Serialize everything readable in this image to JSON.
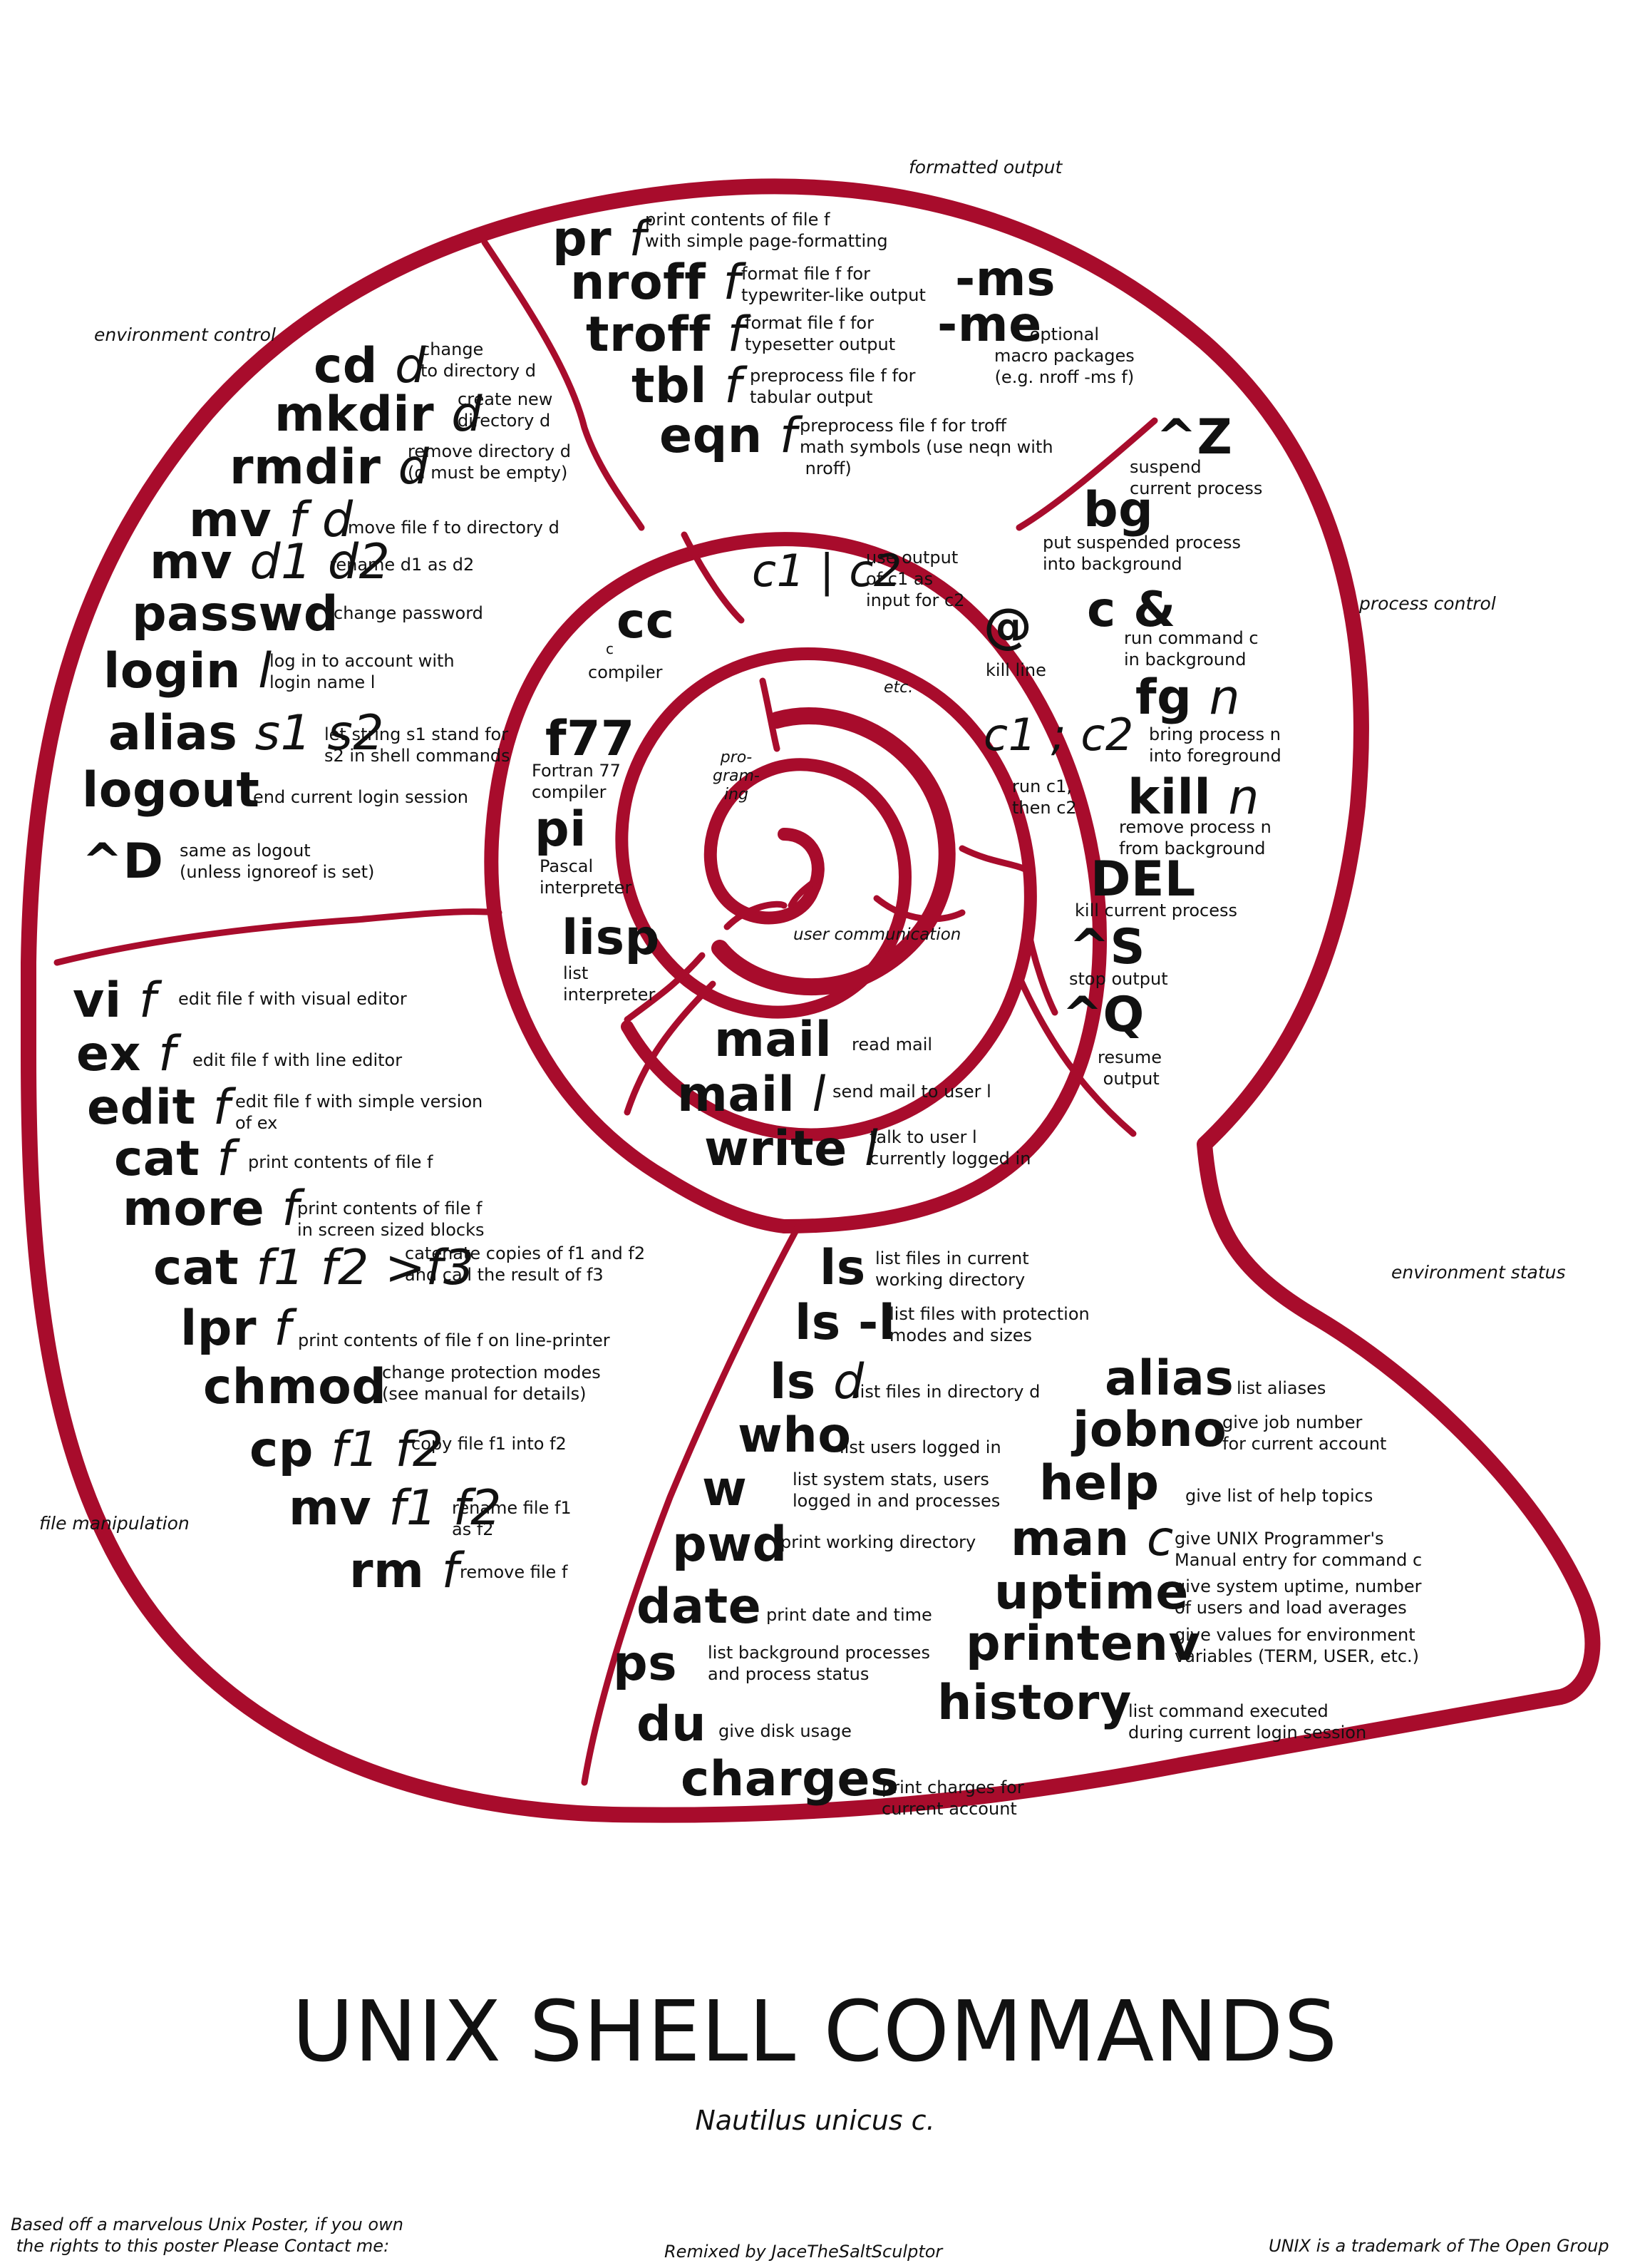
{
  "colors": {
    "shell": "#a80c2c",
    "text": "#111111",
    "background": "#ffffff"
  },
  "title": "UNIX SHELL COMMANDS",
  "subtitle": "Nautilus unicus c.",
  "footer": {
    "left": "Based off a marvelous Unix Poster, if you own\n the rights to this poster Please Contact me:",
    "center": "Remixed by JaceTheSaltSculptor",
    "right": "UNIX is a trademark of The Open Group"
  },
  "sections": {
    "formatted_output": "formatted output",
    "environment_control": "environment control",
    "process_control": "process control",
    "environment_status": "environment status",
    "file_manipulation": "file manipulation",
    "programming": "pro-\ngram-\ning",
    "etc": "etc.",
    "user_communication": "user communication"
  },
  "formatted_output": {
    "pr": {
      "cmd": "pr",
      "arg": "f",
      "desc": "print contents of file f\nwith simple page-formatting"
    },
    "nroff": {
      "cmd": "nroff",
      "arg": "f",
      "desc": "format file f for\ntypewriter-like output"
    },
    "troff": {
      "cmd": "troff",
      "arg": "f",
      "desc": "format file f for\ntypesetter output"
    },
    "tbl": {
      "cmd": "tbl",
      "arg": "f",
      "desc": "preprocess file f for\ntabular output"
    },
    "eqn": {
      "cmd": "eqn",
      "arg": "f",
      "desc": "preprocess file f for troff\nmath symbols (use neqn with\n nroff)"
    },
    "ms": {
      "cmd": "-ms"
    },
    "me": {
      "cmd": "-me"
    },
    "macros_desc": "optional\nmacro packages\n(e.g. nroff -ms f)"
  },
  "environment_control": {
    "cd": {
      "cmd": "cd",
      "arg": "d",
      "desc": "change\nto directory d"
    },
    "mkdir": {
      "cmd": "mkdir",
      "arg": "d",
      "desc": "create new\ndirectory d"
    },
    "rmdir": {
      "cmd": "rmdir",
      "arg": "d",
      "desc": "remove directory d\n(d must be empty)"
    },
    "mv_fd": {
      "cmd": "mv",
      "arg": "f d",
      "desc": "move file f to directory d"
    },
    "mv_dd": {
      "cmd": "mv",
      "arg": "d1 d2",
      "desc": "rename d1 as d2"
    },
    "passwd": {
      "cmd": "passwd",
      "desc": "change password"
    },
    "login": {
      "cmd": "login",
      "arg": "l",
      "desc": "log in to account with\nlogin name l"
    },
    "alias": {
      "cmd": "alias",
      "arg": "s1 s2",
      "desc": "let string s1 stand for\ns2 in shell commands"
    },
    "logout": {
      "cmd": "logout",
      "desc": "end current login session"
    },
    "ctrl_d": {
      "cmd": "^D",
      "desc": "same as logout\n(unless ignoreof is set)"
    }
  },
  "process_control": {
    "ctrl_z": {
      "cmd": "^Z",
      "desc": "suspend\ncurrent process"
    },
    "bg": {
      "cmd": "bg",
      "desc": "put suspended process\ninto background"
    },
    "amp": {
      "cmd": "c &",
      "desc": "run command c\nin background"
    },
    "fg": {
      "cmd": "fg",
      "arg": "n",
      "desc": "bring process n\ninto foreground"
    },
    "kill": {
      "cmd": "kill",
      "arg": "n",
      "desc": "remove process n\nfrom background"
    },
    "del": {
      "cmd": "DEL",
      "desc": "kill current process"
    },
    "ctrl_s": {
      "cmd": "^S",
      "desc": "stop output"
    },
    "ctrl_q": {
      "cmd": "^Q",
      "desc": "resume\n output"
    }
  },
  "programming": {
    "pipe": {
      "cmd": "c1 | c2",
      "desc": "use output\nof c1 as\ninput for c2"
    },
    "at": {
      "cmd": "@",
      "desc": "kill line"
    },
    "seq": {
      "cmd": "c1 ; c2",
      "desc": "run c1,\nthen c2"
    },
    "cc": {
      "cmd": "cc",
      "arg": "c",
      "desc": "compiler"
    },
    "f77": {
      "cmd": "f77",
      "desc": "Fortran 77\ncompiler"
    },
    "pi": {
      "cmd": "pi",
      "desc": "Pascal\ninterpreter"
    },
    "lisp": {
      "cmd": "lisp",
      "desc": "list\ninterpreter"
    }
  },
  "user_communication": {
    "mail": {
      "cmd": "mail",
      "desc": "read mail"
    },
    "mail_l": {
      "cmd": "mail",
      "arg": "l",
      "desc": "send mail to user l"
    },
    "write": {
      "cmd": "write",
      "arg": "l",
      "desc": "talk to user l\ncurrently logged in"
    }
  },
  "file_manipulation": {
    "vi": {
      "cmd": "vi",
      "arg": "f",
      "desc": "edit file f with visual editor"
    },
    "ex": {
      "cmd": "ex",
      "arg": "f",
      "desc": "edit file f with line editor"
    },
    "edit": {
      "cmd": "edit",
      "arg": "f",
      "desc": "edit file f with simple version\nof ex"
    },
    "cat": {
      "cmd": "cat",
      "arg": "f",
      "desc": "print contents of file f"
    },
    "more": {
      "cmd": "more",
      "arg": "f",
      "desc": "print contents of file f\nin screen sized blocks"
    },
    "cat_multi": {
      "cmd": "cat",
      "arg": "f1 f2 >f3",
      "desc": "catenate copies of f1 and f2\nand call the result of f3"
    },
    "lpr": {
      "cmd": "lpr",
      "arg": "f",
      "desc": "print contents of file f on line-printer"
    },
    "chmod": {
      "cmd": "chmod",
      "desc": "change protection modes\n(see manual for details)"
    },
    "cp": {
      "cmd": "cp",
      "arg": "f1 f2",
      "desc": "copy file f1 into f2"
    },
    "mv": {
      "cmd": "mv",
      "arg": "f1 f2",
      "desc": "rename file f1\nas f2"
    },
    "rm": {
      "cmd": "rm",
      "arg": "f",
      "desc": "remove file f"
    }
  },
  "environment_status": {
    "ls": {
      "cmd": "ls",
      "desc": "list files in current\nworking directory"
    },
    "ls_l": {
      "cmd": "ls -l",
      "desc": "list files with protection\nmodes and sizes"
    },
    "ls_d": {
      "cmd": "ls",
      "arg": "d",
      "desc": "list files in directory d"
    },
    "who": {
      "cmd": "who",
      "desc": "list users logged in"
    },
    "w": {
      "cmd": "w",
      "desc": "list system stats, users\nlogged in and processes"
    },
    "pwd": {
      "cmd": "pwd",
      "desc": "print working directory"
    },
    "date": {
      "cmd": "date",
      "desc": "print date and time"
    },
    "ps": {
      "cmd": "ps",
      "desc": "list background processes\nand process status"
    },
    "du": {
      "cmd": "du",
      "desc": "give disk usage"
    },
    "charges": {
      "cmd": "charges",
      "desc": "print charges for\ncurrent account"
    },
    "alias": {
      "cmd": "alias",
      "desc": "list aliases"
    },
    "jobno": {
      "cmd": "jobno",
      "desc": "give job number\nfor current account"
    },
    "help": {
      "cmd": "help",
      "desc": "give list of help topics"
    },
    "man": {
      "cmd": "man",
      "arg": "c",
      "desc": "give UNIX Programmer's\nManual entry for command c"
    },
    "uptime": {
      "cmd": "uptime",
      "desc": "give system uptime, number\nof users and load averages"
    },
    "printenv": {
      "cmd": "printenv",
      "desc": "give values for environment\nvariables (TERM, USER, etc.)"
    },
    "history": {
      "cmd": "history",
      "desc": "list command executed\nduring current login session"
    }
  }
}
